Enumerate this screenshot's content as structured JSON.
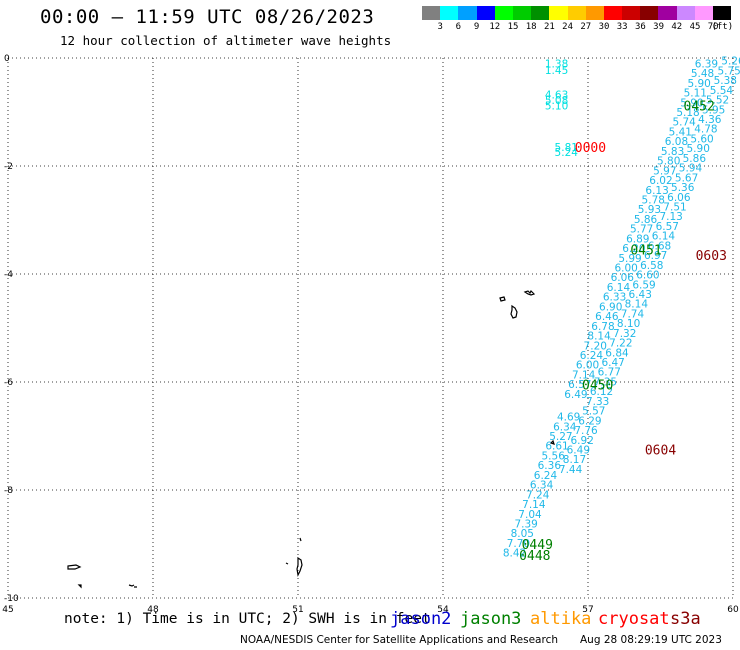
{
  "header": {
    "title": "00:00 – 11:59 UTC 08/26/2023",
    "subtitle": "12 hour collection of altimeter wave heights"
  },
  "legend": {
    "colors": [
      "#808080",
      "#00ffff",
      "#00a0ff",
      "#0000ff",
      "#00ff00",
      "#00cc00",
      "#009000",
      "#ffff00",
      "#ffcc00",
      "#ff9900",
      "#ff0000",
      "#cc0000",
      "#880000",
      "#a000a0",
      "#cc88ff",
      "#ff99ff",
      "#000000"
    ],
    "labels": [
      "3",
      "6",
      "9",
      "12",
      "15",
      "18",
      "21",
      "24",
      "27",
      "30",
      "33",
      "36",
      "39",
      "42",
      "45",
      "70",
      "(ft)"
    ]
  },
  "map": {
    "lon_labels": [
      "45",
      "48",
      "51",
      "54",
      "57",
      "60"
    ],
    "lat_labels": [
      "0",
      "-2",
      "-4",
      "-6",
      "-8",
      "-10"
    ],
    "lon_range": [
      45,
      60
    ],
    "lat_range": [
      -10,
      0
    ]
  },
  "tracks": {
    "track_a_left": {
      "color": "#00e0e0",
      "points": [
        {
          "lon": 56.35,
          "lat": -0.1,
          "swh": "1.38"
        },
        {
          "lon": 56.35,
          "lat": -0.22,
          "swh": "1.45"
        },
        {
          "lon": 56.35,
          "lat": -0.68,
          "swh": "4.63"
        },
        {
          "lon": 56.35,
          "lat": -0.78,
          "swh": "5.08"
        },
        {
          "lon": 56.35,
          "lat": -0.88,
          "swh": "5.10"
        },
        {
          "lon": 56.55,
          "lat": -1.65,
          "swh": "5.81"
        },
        {
          "lon": 56.55,
          "lat": -1.74,
          "swh": "5.24"
        }
      ]
    },
    "track_b": {
      "color": "#20b8e8",
      "points": [
        {
          "lon": 59.45,
          "lat": -0.1,
          "swh": "6.39"
        },
        {
          "lon": 59.37,
          "lat": -0.28,
          "swh": "5.48"
        },
        {
          "lon": 59.3,
          "lat": -0.46,
          "swh": "5.90"
        },
        {
          "lon": 59.22,
          "lat": -0.64,
          "swh": "5.11"
        },
        {
          "lon": 59.15,
          "lat": -0.82,
          "swh": "5.90"
        },
        {
          "lon": 59.07,
          "lat": -1.0,
          "swh": "5.18"
        },
        {
          "lon": 58.99,
          "lat": -1.18,
          "swh": "5.74"
        },
        {
          "lon": 58.91,
          "lat": -1.36,
          "swh": "5.41"
        },
        {
          "lon": 58.83,
          "lat": -1.54,
          "swh": "6.08"
        },
        {
          "lon": 58.75,
          "lat": -1.72,
          "swh": "5.83"
        },
        {
          "lon": 58.67,
          "lat": -1.9,
          "swh": "5.80"
        },
        {
          "lon": 58.59,
          "lat": -2.08,
          "swh": "5.97"
        },
        {
          "lon": 58.51,
          "lat": -2.26,
          "swh": "6.02"
        },
        {
          "lon": 58.43,
          "lat": -2.44,
          "swh": "6.13"
        },
        {
          "lon": 58.35,
          "lat": -2.62,
          "swh": "5.78"
        },
        {
          "lon": 58.27,
          "lat": -2.8,
          "swh": "5.93"
        },
        {
          "lon": 58.19,
          "lat": -2.98,
          "swh": "5.86"
        },
        {
          "lon": 58.11,
          "lat": -3.16,
          "swh": "5.77"
        },
        {
          "lon": 58.03,
          "lat": -3.34,
          "swh": "6.89"
        },
        {
          "lon": 57.95,
          "lat": -3.52,
          "swh": "6.20"
        },
        {
          "lon": 57.87,
          "lat": -3.7,
          "swh": "5.99"
        },
        {
          "lon": 57.79,
          "lat": -3.88,
          "swh": "6.00"
        },
        {
          "lon": 57.71,
          "lat": -4.06,
          "swh": "6.06"
        },
        {
          "lon": 57.63,
          "lat": -4.24,
          "swh": "6.14"
        },
        {
          "lon": 57.55,
          "lat": -4.42,
          "swh": "6.33"
        },
        {
          "lon": 57.47,
          "lat": -4.6,
          "swh": "6.90"
        },
        {
          "lon": 57.39,
          "lat": -4.78,
          "swh": "6.46"
        },
        {
          "lon": 57.31,
          "lat": -4.96,
          "swh": "6.78"
        },
        {
          "lon": 57.23,
          "lat": -5.14,
          "swh": "8.14"
        },
        {
          "lon": 57.15,
          "lat": -5.32,
          "swh": "7.20"
        },
        {
          "lon": 57.07,
          "lat": -5.5,
          "swh": "6.24"
        },
        {
          "lon": 56.99,
          "lat": -5.68,
          "swh": "6.00"
        },
        {
          "lon": 56.91,
          "lat": -5.86,
          "swh": "7.14"
        },
        {
          "lon": 56.83,
          "lat": -6.04,
          "swh": "6.57"
        },
        {
          "lon": 56.75,
          "lat": -6.22,
          "swh": "6.49"
        },
        {
          "lon": 56.6,
          "lat": -6.64,
          "swh": "4.69"
        },
        {
          "lon": 56.52,
          "lat": -6.82,
          "swh": "6.34"
        },
        {
          "lon": 56.44,
          "lat": -7.0,
          "swh": "5.27"
        },
        {
          "lon": 56.36,
          "lat": -7.18,
          "swh": "6.61"
        },
        {
          "lon": 56.28,
          "lat": -7.36,
          "swh": "5.56"
        },
        {
          "lon": 56.2,
          "lat": -7.54,
          "swh": "6.36"
        },
        {
          "lon": 56.12,
          "lat": -7.72,
          "swh": "6.24"
        },
        {
          "lon": 56.04,
          "lat": -7.9,
          "swh": "6.34"
        },
        {
          "lon": 55.96,
          "lat": -8.08,
          "swh": "7.24"
        },
        {
          "lon": 55.88,
          "lat": -8.26,
          "swh": "7.14"
        },
        {
          "lon": 55.8,
          "lat": -8.44,
          "swh": "7.04"
        },
        {
          "lon": 55.72,
          "lat": -8.62,
          "swh": "7.39"
        },
        {
          "lon": 55.64,
          "lat": -8.8,
          "swh": "8.05"
        },
        {
          "lon": 55.56,
          "lat": -8.98,
          "swh": "7.70"
        },
        {
          "lon": 55.48,
          "lat": -9.16,
          "swh": "8.42"
        }
      ]
    },
    "track_c": {
      "color": "#20b8e8",
      "points": [
        {
          "lon": 60.0,
          "lat": -0.05,
          "swh": "5.26"
        },
        {
          "lon": 59.92,
          "lat": -0.23,
          "swh": "5.75"
        },
        {
          "lon": 59.84,
          "lat": -0.41,
          "swh": "5.38"
        },
        {
          "lon": 59.76,
          "lat": -0.59,
          "swh": "5.54"
        },
        {
          "lon": 59.68,
          "lat": -0.77,
          "swh": "5.52"
        },
        {
          "lon": 59.6,
          "lat": -0.95,
          "swh": "5.95"
        },
        {
          "lon": 59.52,
          "lat": -1.13,
          "swh": "4.36"
        },
        {
          "lon": 59.44,
          "lat": -1.31,
          "swh": "4.78"
        },
        {
          "lon": 59.36,
          "lat": -1.49,
          "swh": "5.60"
        },
        {
          "lon": 59.28,
          "lat": -1.67,
          "swh": "5.90"
        },
        {
          "lon": 59.2,
          "lat": -1.85,
          "swh": "5.86"
        },
        {
          "lon": 59.12,
          "lat": -2.03,
          "swh": "5.94"
        },
        {
          "lon": 59.04,
          "lat": -2.21,
          "swh": "5.67"
        },
        {
          "lon": 58.96,
          "lat": -2.39,
          "swh": "5.36"
        },
        {
          "lon": 58.88,
          "lat": -2.57,
          "swh": "6.06"
        },
        {
          "lon": 58.8,
          "lat": -2.75,
          "swh": "7.51"
        },
        {
          "lon": 58.72,
          "lat": -2.93,
          "swh": "7.13"
        },
        {
          "lon": 58.64,
          "lat": -3.11,
          "swh": "6.57"
        },
        {
          "lon": 58.56,
          "lat": -3.29,
          "swh": "6.14"
        },
        {
          "lon": 58.48,
          "lat": -3.47,
          "swh": "6.68"
        },
        {
          "lon": 58.4,
          "lat": -3.65,
          "swh": "6.97"
        },
        {
          "lon": 58.32,
          "lat": -3.83,
          "swh": "6.58"
        },
        {
          "lon": 58.24,
          "lat": -4.01,
          "swh": "6.60"
        },
        {
          "lon": 58.16,
          "lat": -4.19,
          "swh": "6.59"
        },
        {
          "lon": 58.08,
          "lat": -4.37,
          "swh": "6.43"
        },
        {
          "lon": 58.0,
          "lat": -4.55,
          "swh": "8.14"
        },
        {
          "lon": 57.92,
          "lat": -4.73,
          "swh": "7.74"
        },
        {
          "lon": 57.84,
          "lat": -4.91,
          "swh": "8.10"
        },
        {
          "lon": 57.76,
          "lat": -5.09,
          "swh": "7.32"
        },
        {
          "lon": 57.68,
          "lat": -5.27,
          "swh": "7.22"
        },
        {
          "lon": 57.6,
          "lat": -5.45,
          "swh": "6.84"
        },
        {
          "lon": 57.52,
          "lat": -5.63,
          "swh": "6.47"
        },
        {
          "lon": 57.44,
          "lat": -5.81,
          "swh": "6.77"
        },
        {
          "lon": 57.36,
          "lat": -5.99,
          "swh": "7.35"
        },
        {
          "lon": 57.28,
          "lat": -6.17,
          "swh": "6.12"
        },
        {
          "lon": 57.2,
          "lat": -6.35,
          "swh": "7.33"
        },
        {
          "lon": 57.12,
          "lat": -6.53,
          "swh": "5.57"
        },
        {
          "lon": 57.04,
          "lat": -6.71,
          "swh": "6.29"
        },
        {
          "lon": 56.96,
          "lat": -6.89,
          "swh": "7.76"
        },
        {
          "lon": 56.88,
          "lat": -7.07,
          "swh": "6.92"
        },
        {
          "lon": 56.8,
          "lat": -7.25,
          "swh": "6.49"
        },
        {
          "lon": 56.72,
          "lat": -7.43,
          "swh": "8.17"
        },
        {
          "lon": 56.64,
          "lat": -7.61,
          "swh": "7.44"
        }
      ]
    }
  },
  "time_labels": [
    {
      "text": "0452",
      "color": "#008000",
      "lon": 59.3,
      "lat": -0.88
    },
    {
      "text": "0000",
      "color": "#ff0000",
      "lon": 57.05,
      "lat": -1.65
    },
    {
      "text": "0451",
      "color": "#008000",
      "lon": 58.2,
      "lat": -3.55
    },
    {
      "text": "0603",
      "color": "#880000",
      "lon": 59.55,
      "lat": -3.65
    },
    {
      "text": "0450",
      "color": "#008000",
      "lon": 57.2,
      "lat": -6.05
    },
    {
      "text": "0604",
      "color": "#880000",
      "lon": 58.5,
      "lat": -7.25
    },
    {
      "text": "0449",
      "color": "#008000",
      "lon": 55.95,
      "lat": -9.0
    },
    {
      "text": "0448",
      "color": "#008000",
      "lon": 55.9,
      "lat": -9.2
    }
  ],
  "footer": {
    "note": "note: 1) Time is in UTC; 2) SWH is in feet",
    "satellites": [
      {
        "name": "jason2",
        "color": "#0000cc"
      },
      {
        "name": "jason3",
        "color": "#008000"
      },
      {
        "name": "altika",
        "color": "#ff9900"
      },
      {
        "name": "cryosat",
        "color": "#ff0000"
      },
      {
        "name": "s3a",
        "color": "#880000"
      }
    ],
    "credit": "NOAA/NESDIS Center for Satellite Applications and Research",
    "timestamp": "Aug 28 08:29:19 UTC 2023"
  }
}
